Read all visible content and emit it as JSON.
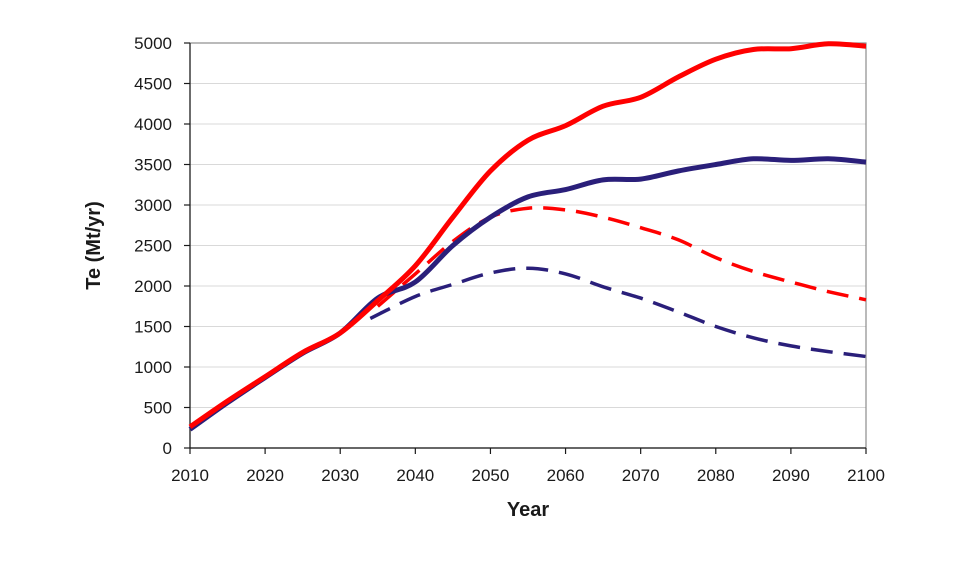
{
  "chart_data": {
    "type": "line",
    "title": "",
    "xlabel": "Year",
    "ylabel": "Te (Mt/yr)",
    "xlim": [
      2010,
      2100
    ],
    "ylim": [
      0,
      5000
    ],
    "x_ticks": [
      2010,
      2020,
      2030,
      2040,
      2050,
      2060,
      2070,
      2080,
      2090,
      2100
    ],
    "y_ticks": [
      0,
      500,
      1000,
      1500,
      2000,
      2500,
      3000,
      3500,
      4000,
      4500,
      5000
    ],
    "grid": "horizontal",
    "legend": "none",
    "series": [
      {
        "color": "#ff0000",
        "style": "solid",
        "points": [
          [
            2010,
            260
          ],
          [
            2015,
            580
          ],
          [
            2020,
            880
          ],
          [
            2025,
            1180
          ],
          [
            2030,
            1420
          ],
          [
            2035,
            1820
          ],
          [
            2040,
            2250
          ],
          [
            2045,
            2850
          ],
          [
            2050,
            3420
          ],
          [
            2055,
            3800
          ],
          [
            2060,
            3980
          ],
          [
            2065,
            4220
          ],
          [
            2070,
            4330
          ],
          [
            2075,
            4580
          ],
          [
            2080,
            4800
          ],
          [
            2085,
            4920
          ],
          [
            2090,
            4930
          ],
          [
            2095,
            4990
          ],
          [
            2100,
            4960
          ]
        ]
      },
      {
        "color": "#2a1f7a",
        "style": "solid",
        "points": [
          [
            2010,
            230
          ],
          [
            2015,
            560
          ],
          [
            2020,
            870
          ],
          [
            2025,
            1170
          ],
          [
            2030,
            1420
          ],
          [
            2035,
            1850
          ],
          [
            2040,
            2050
          ],
          [
            2045,
            2500
          ],
          [
            2050,
            2850
          ],
          [
            2055,
            3100
          ],
          [
            2060,
            3190
          ],
          [
            2065,
            3310
          ],
          [
            2070,
            3320
          ],
          [
            2075,
            3420
          ],
          [
            2080,
            3500
          ],
          [
            2085,
            3570
          ],
          [
            2090,
            3550
          ],
          [
            2095,
            3570
          ],
          [
            2100,
            3530
          ]
        ]
      },
      {
        "color": "#ff0000",
        "style": "dashed",
        "points": [
          [
            2035,
            1750
          ],
          [
            2040,
            2150
          ],
          [
            2045,
            2550
          ],
          [
            2050,
            2850
          ],
          [
            2055,
            2960
          ],
          [
            2060,
            2940
          ],
          [
            2065,
            2850
          ],
          [
            2070,
            2720
          ],
          [
            2075,
            2570
          ],
          [
            2080,
            2350
          ],
          [
            2085,
            2180
          ],
          [
            2090,
            2050
          ],
          [
            2095,
            1930
          ],
          [
            2100,
            1830
          ]
        ]
      },
      {
        "color": "#2a1f7a",
        "style": "dashed",
        "points": [
          [
            2034,
            1600
          ],
          [
            2040,
            1870
          ],
          [
            2045,
            2020
          ],
          [
            2050,
            2160
          ],
          [
            2055,
            2220
          ],
          [
            2060,
            2150
          ],
          [
            2065,
            1990
          ],
          [
            2070,
            1850
          ],
          [
            2075,
            1680
          ],
          [
            2080,
            1500
          ],
          [
            2085,
            1360
          ],
          [
            2090,
            1260
          ],
          [
            2095,
            1190
          ],
          [
            2100,
            1130
          ]
        ]
      }
    ]
  }
}
